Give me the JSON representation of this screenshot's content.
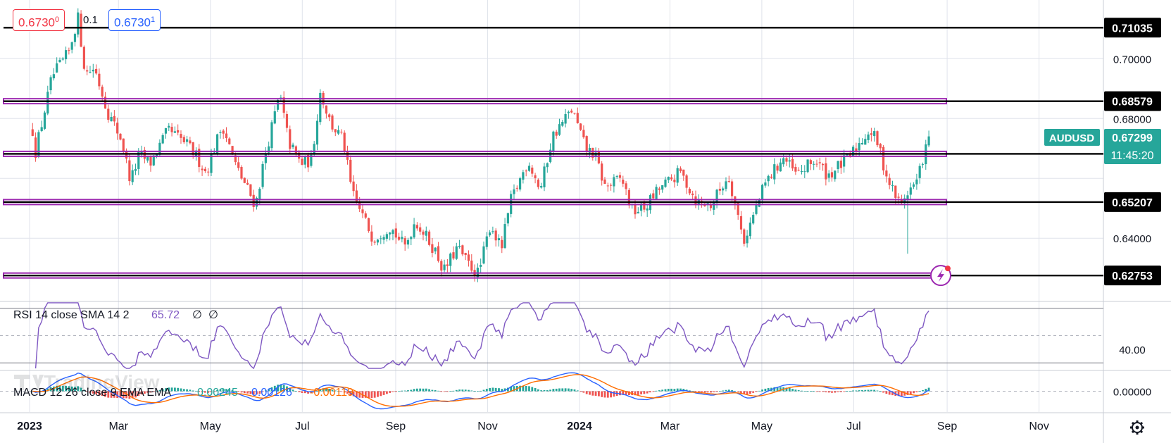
{
  "quote_header": {
    "bid": "0.6730",
    "bid_sup": "0",
    "spread": "0.1",
    "ask": "0.6730",
    "ask_sup": "1"
  },
  "symbol": {
    "name": "AUDUSD",
    "last_price": "0.67299",
    "countdown": "11:45:20",
    "color": "#26a69a"
  },
  "colors": {
    "up": "#26a69a",
    "down": "#ef5350",
    "zone": "#9c27b0",
    "level": "#000000",
    "rsi": "#7e57c2",
    "macd": "#2962ff",
    "signal": "#ff6d00",
    "grid": "#e0e3eb"
  },
  "watermark": "TradingView",
  "alert_icon": "lightning-alert-icon",
  "settings_icon": "gear-icon",
  "chart_data": [
    {
      "type": "candlestick",
      "symbol": "AUDUSD",
      "timeframe": "daily",
      "x_ticks": [
        "2023",
        "Mar",
        "May",
        "Jul",
        "Sep",
        "Nov",
        "2024",
        "Mar",
        "May",
        "Jul",
        "Sep",
        "Nov"
      ],
      "y_ticks": [
        "0.70000",
        "0.68000",
        "0.64000"
      ],
      "ylim": [
        0.6191,
        0.7196
      ],
      "levels": [
        {
          "label": "0.71035",
          "value": 0.71035,
          "zone": false
        },
        {
          "label": "0.68579",
          "value": 0.68579,
          "zone": true
        },
        {
          "label": "0.66819",
          "value": 0.66819,
          "zone": true
        },
        {
          "label": "0.65207",
          "value": 0.65207,
          "zone": true
        },
        {
          "label": "0.62753",
          "value": 0.62753,
          "zone": true
        }
      ],
      "path": [
        [
          "2023-01-03",
          0.676
        ],
        [
          "2023-01-05",
          0.669
        ],
        [
          "2023-01-16",
          0.694
        ],
        [
          "2023-01-27",
          0.702
        ],
        [
          "2023-02-02",
          0.714
        ],
        [
          "2023-02-07",
          0.695
        ],
        [
          "2023-02-13",
          0.697
        ],
        [
          "2023-02-22",
          0.682
        ],
        [
          "2023-03-03",
          0.673
        ],
        [
          "2023-03-09",
          0.659
        ],
        [
          "2023-03-15",
          0.668
        ],
        [
          "2023-03-22",
          0.665
        ],
        [
          "2023-04-03",
          0.676
        ],
        [
          "2023-04-14",
          0.672
        ],
        [
          "2023-04-21",
          0.668
        ],
        [
          "2023-04-28",
          0.662
        ],
        [
          "2023-05-09",
          0.678
        ],
        [
          "2023-05-18",
          0.664
        ],
        [
          "2023-05-31",
          0.651
        ],
        [
          "2023-06-06",
          0.667
        ],
        [
          "2023-06-16",
          0.688
        ],
        [
          "2023-06-22",
          0.672
        ],
        [
          "2023-06-30",
          0.665
        ],
        [
          "2023-07-07",
          0.666
        ],
        [
          "2023-07-13",
          0.689
        ],
        [
          "2023-07-20",
          0.678
        ],
        [
          "2023-07-28",
          0.673
        ],
        [
          "2023-08-03",
          0.655
        ],
        [
          "2023-08-17",
          0.64
        ],
        [
          "2023-08-28",
          0.644
        ],
        [
          "2023-09-07",
          0.637
        ],
        [
          "2023-09-14",
          0.646
        ],
        [
          "2023-09-27",
          0.636
        ],
        [
          "2023-10-03",
          0.629
        ],
        [
          "2023-10-12",
          0.637
        ],
        [
          "2023-10-18",
          0.632
        ],
        [
          "2023-10-26",
          0.628
        ],
        [
          "2023-11-03",
          0.645
        ],
        [
          "2023-11-10",
          0.636
        ],
        [
          "2023-11-16",
          0.652
        ],
        [
          "2023-11-28",
          0.666
        ],
        [
          "2023-12-06",
          0.656
        ],
        [
          "2023-12-14",
          0.674
        ],
        [
          "2023-12-27",
          0.683
        ],
        [
          "2024-01-05",
          0.67
        ],
        [
          "2024-01-11",
          0.668
        ],
        [
          "2024-01-18",
          0.657
        ],
        [
          "2024-01-29",
          0.66
        ],
        [
          "2024-02-05",
          0.649
        ],
        [
          "2024-02-13",
          0.65
        ],
        [
          "2024-02-22",
          0.656
        ],
        [
          "2024-03-08",
          0.662
        ],
        [
          "2024-03-19",
          0.652
        ],
        [
          "2024-03-28",
          0.651
        ],
        [
          "2024-04-09",
          0.661
        ],
        [
          "2024-04-19",
          0.639
        ],
        [
          "2024-05-03",
          0.658
        ],
        [
          "2024-05-15",
          0.667
        ],
        [
          "2024-05-24",
          0.661
        ],
        [
          "2024-06-05",
          0.666
        ],
        [
          "2024-06-14",
          0.661
        ],
        [
          "2024-06-28",
          0.667
        ],
        [
          "2024-07-08",
          0.674
        ],
        [
          "2024-07-11",
          0.676
        ],
        [
          "2024-07-16",
          0.673
        ],
        [
          "2024-07-24",
          0.659
        ],
        [
          "2024-08-01",
          0.651
        ],
        [
          "2024-08-05",
          0.655
        ],
        [
          "2024-08-12",
          0.659
        ],
        [
          "2024-08-16",
          0.667
        ],
        [
          "2024-08-20",
          0.673
        ]
      ]
    },
    {
      "type": "line",
      "name": "RSI 14 close SMA 14 2",
      "values_label": "65.72",
      "extra_labels": [
        "∅",
        "∅"
      ],
      "y_ticks": [
        "40.00"
      ],
      "bands": [
        70,
        50,
        30
      ],
      "ylim": [
        25,
        75
      ]
    },
    {
      "type": "line",
      "name": "MACD 12 26 close 9 EMA EMA",
      "values": [
        "0.00245",
        "0.00126",
        "-0.00119"
      ],
      "y_ticks": [
        "0.00000"
      ],
      "ylim": [
        -0.0105,
        0.0105
      ]
    }
  ]
}
